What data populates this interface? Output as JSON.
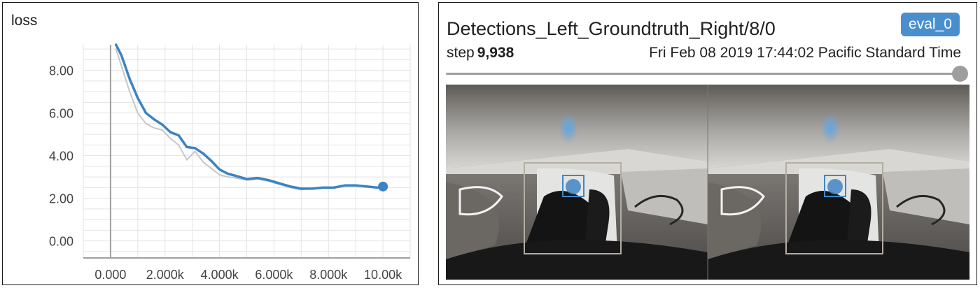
{
  "loss_card": {
    "title": "loss"
  },
  "chart_data": {
    "type": "line",
    "title": "loss",
    "xlabel": "",
    "ylabel": "",
    "xlim": [
      -1000,
      11000
    ],
    "ylim": [
      -0.8,
      9.2
    ],
    "x_ticks": [
      0,
      2000,
      4000,
      6000,
      8000,
      10000
    ],
    "x_tick_labels": [
      "0.000",
      "2.000k",
      "4.000k",
      "6.000k",
      "8.000k",
      "10.00k"
    ],
    "y_ticks": [
      0,
      2,
      4,
      6,
      8
    ],
    "y_tick_labels": [
      "0.00",
      "2.00",
      "4.00",
      "6.00",
      "8.00"
    ],
    "grid": true,
    "series": [
      {
        "role": "smoothed",
        "color": "#3b83c2",
        "x": [
          200,
          400,
          700,
          1000,
          1300,
          1600,
          1900,
          2200,
          2500,
          2800,
          3100,
          3400,
          3700,
          4000,
          4300,
          4600,
          5000,
          5400,
          5800,
          6200,
          6600,
          7000,
          7400,
          7800,
          8200,
          8600,
          9000,
          9400,
          9800,
          10000
        ],
        "y": [
          9.2,
          8.7,
          7.6,
          6.7,
          6.0,
          5.7,
          5.45,
          5.1,
          4.95,
          4.4,
          4.35,
          4.1,
          3.75,
          3.35,
          3.15,
          3.05,
          2.9,
          2.95,
          2.85,
          2.7,
          2.55,
          2.45,
          2.45,
          2.5,
          2.5,
          2.6,
          2.6,
          2.55,
          2.5,
          2.55
        ]
      },
      {
        "role": "raw",
        "color": "#c7c7c7",
        "x": [
          200,
          400,
          700,
          1000,
          1300,
          1600,
          1900,
          2200,
          2500,
          2800,
          3100,
          3400,
          3700,
          4000,
          4300,
          4600,
          5000,
          5400,
          5800,
          6200,
          6600,
          7000,
          7400,
          7800,
          8200,
          8600,
          9000,
          9400,
          9800,
          10000
        ],
        "y": [
          9.0,
          8.2,
          7.0,
          6.0,
          5.5,
          5.3,
          5.2,
          4.8,
          4.5,
          3.8,
          4.2,
          3.7,
          3.4,
          3.1,
          3.0,
          2.95,
          2.85,
          2.9,
          2.8,
          2.65,
          2.5,
          2.4,
          2.45,
          2.5,
          2.5,
          2.6,
          2.6,
          2.55,
          2.5,
          2.55
        ]
      }
    ],
    "last_point": {
      "x": 10000,
      "y": 2.55
    }
  },
  "image_card": {
    "title": "Detections_Left_Groundtruth_Right/8/0",
    "run_badge": "eval_0",
    "step_label": "step",
    "step_value": "9,938",
    "timestamp": "Fri Feb 08 2019 17:44:02 Pacific Standard Time",
    "slider_value": 1.0,
    "image_icon": "image-icon"
  }
}
